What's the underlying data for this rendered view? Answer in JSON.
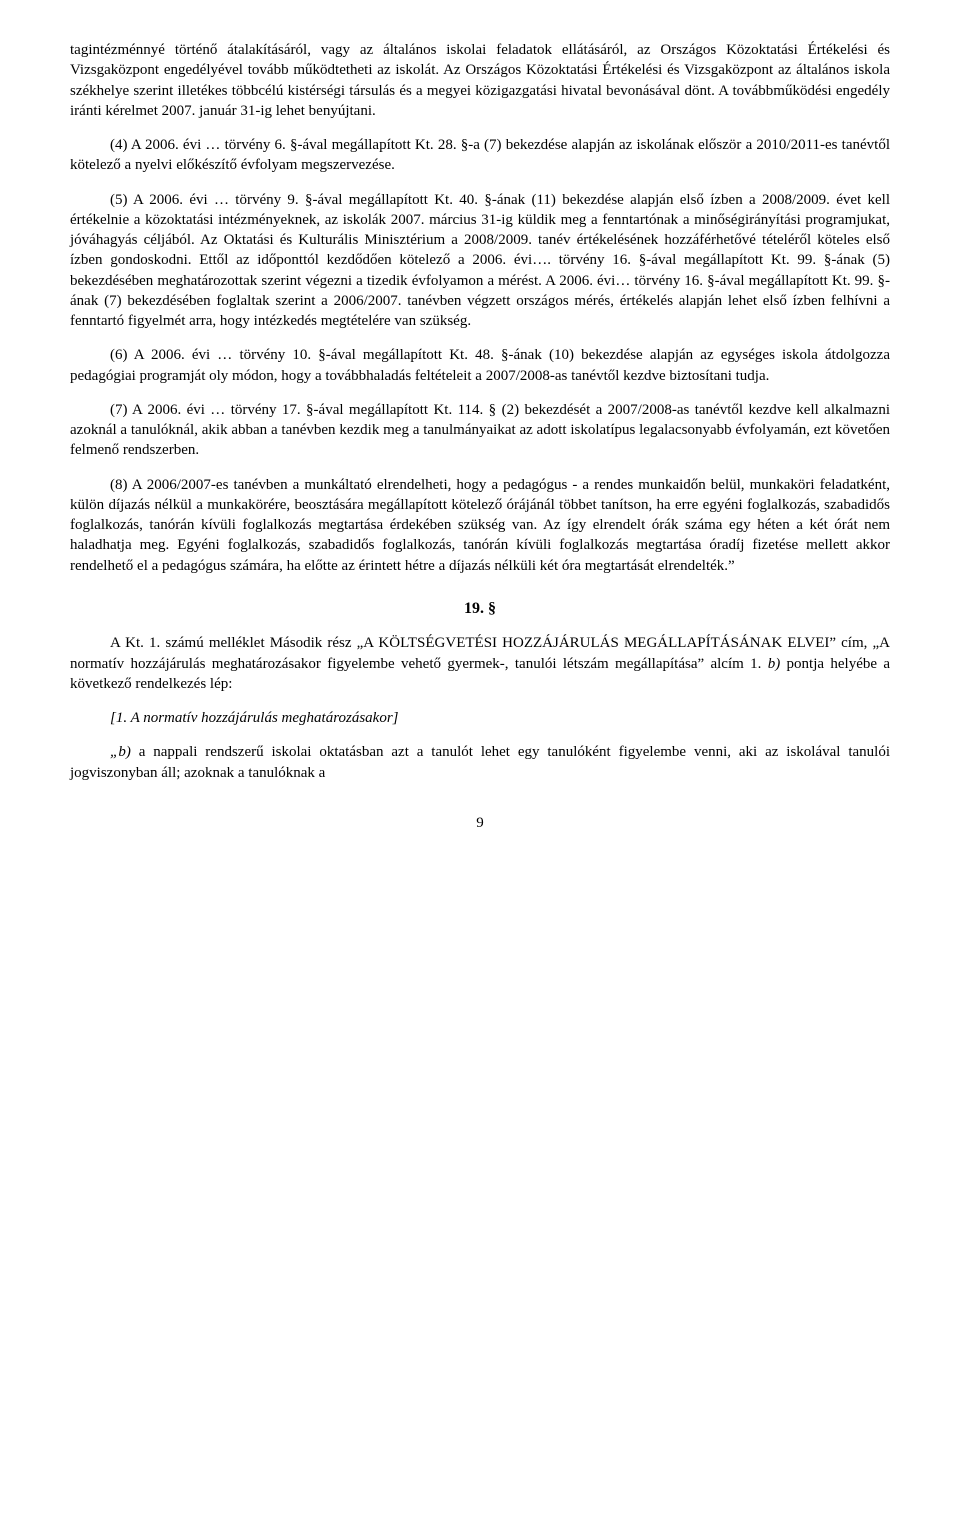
{
  "p1": "tagintézménnyé történő átalakításáról, vagy az általános iskolai feladatok ellátásáról, az Országos Közoktatási Értékelési és Vizsgaközpont engedélyével tovább működtetheti az iskolát. Az Országos Közoktatási Értékelési és Vizsgaközpont az általános iskola székhelye szerint illetékes többcélú kistérségi társulás és a megyei közigazgatási hivatal bevonásával dönt. A továbbműködési engedély iránti kérelmet 2007. január 31-ig lehet benyújtani.",
  "p2": "(4) A 2006. évi … törvény 6. §-ával megállapított Kt. 28. §-a (7) bekezdése alapján az iskolának először a 2010/2011-es tanévtől kötelező a nyelvi előkészítő évfolyam megszervezése.",
  "p3": "(5) A 2006. évi … törvény 9. §-ával megállapított Kt. 40. §-ának (11) bekezdése alapján első ízben a 2008/2009. évet kell értékelnie a közoktatási intézményeknek, az iskolák 2007. március 31-ig küldik meg a fenntartónak a minőségirányítási programjukat, jóváhagyás céljából. Az Oktatási és Kulturális Minisztérium a 2008/2009. tanév értékelésének hozzáférhetővé tételéről köteles első ízben gondoskodni. Ettől az időponttól kezdődően kötelező a 2006. évi…. törvény 16. §-ával megállapított Kt. 99. §-ának (5) bekezdésében meghatározottak szerint végezni a tizedik évfolyamon a mérést. A 2006. évi… törvény 16. §-ával megállapított Kt. 99. §-ának (7) bekezdésében foglaltak szerint a 2006/2007. tanévben végzett országos mérés, értékelés alapján lehet első ízben felhívni a fenntartó figyelmét arra, hogy intézkedés megtételére van szükség.",
  "p4": "(6) A 2006. évi … törvény 10. §-ával megállapított Kt. 48. §-ának (10) bekezdése alapján az egységes iskola átdolgozza pedagógiai programját oly módon, hogy a továbbhaladás feltételeit a 2007/2008-as tanévtől kezdve biztosítani tudja.",
  "p5": "(7) A 2006. évi … törvény 17. §-ával megállapított Kt. 114. § (2) bekezdését a 2007/2008-as tanévtől kezdve kell alkalmazni azoknál a tanulóknál, akik abban a tanévben kezdik meg a tanulmányaikat az adott iskolatípus legalacsonyabb évfolyamán, ezt követően felmenő rendszerben.",
  "p6": "(8) A 2006/2007-es tanévben a munkáltató elrendelheti, hogy a pedagógus - a rendes munkaidőn belül, munkaköri feladatként, külön díjazás nélkül a munkakörére, beosztására megállapított kötelező órájánál többet tanítson, ha erre egyéni foglalkozás, szabadidős foglalkozás, tanórán kívüli foglalkozás megtartása érdekében szükség van. Az így elrendelt órák száma egy héten a két órát nem haladhatja meg. Egyéni foglalkozás, szabadidős foglalkozás, tanórán kívüli foglalkozás megtartása óradíj fizetése mellett akkor rendelhető el a pedagógus számára, ha előtte az érintett hétre a díjazás nélküli két óra megtartását elrendelték.”",
  "section": "19. §",
  "p7_a": "A Kt. 1. számú melléklet Második rész „A KÖLTSÉGVETÉSI HOZZÁJÁRULÁS MEGÁLLAPÍTÁSÁNAK ELVEI” cím, „A normatív hozzájárulás meghatározásakor figyelembe vehető gyermek-, tanulói létszám megállapítása” alcím 1. ",
  "p7_b": "b)",
  "p7_c": " pontja helyébe a következő rendelkezés lép:",
  "p8": "[1. A normatív hozzájárulás meghatározásakor]",
  "p9_a": "„b)",
  "p9_b": " a nappali rendszerű iskolai oktatásban azt a tanulót lehet egy tanulóként figyelembe venni, aki az iskolával tanulói jogviszonyban áll; azoknak a tanulóknak a",
  "pageNumber": "9"
}
